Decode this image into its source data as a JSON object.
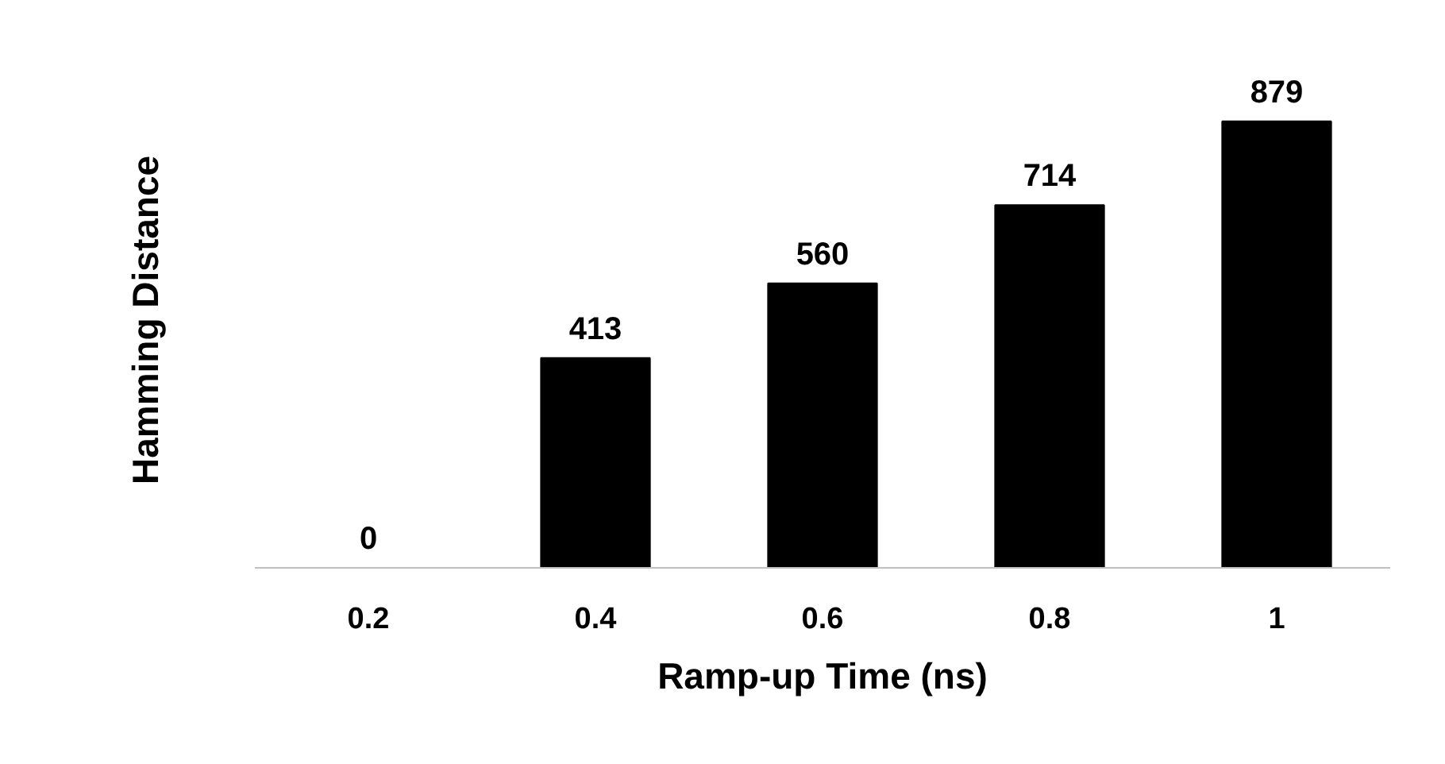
{
  "chart_data": {
    "type": "bar",
    "xlabel": "Ramp-up Time (ns)",
    "ylabel": "Hamming Distance",
    "categories": [
      "0.2",
      "0.4",
      "0.6",
      "0.8",
      "1"
    ],
    "values": [
      0,
      413,
      560,
      714,
      879
    ],
    "color": "#000000",
    "data_labels": true,
    "grid": false
  }
}
